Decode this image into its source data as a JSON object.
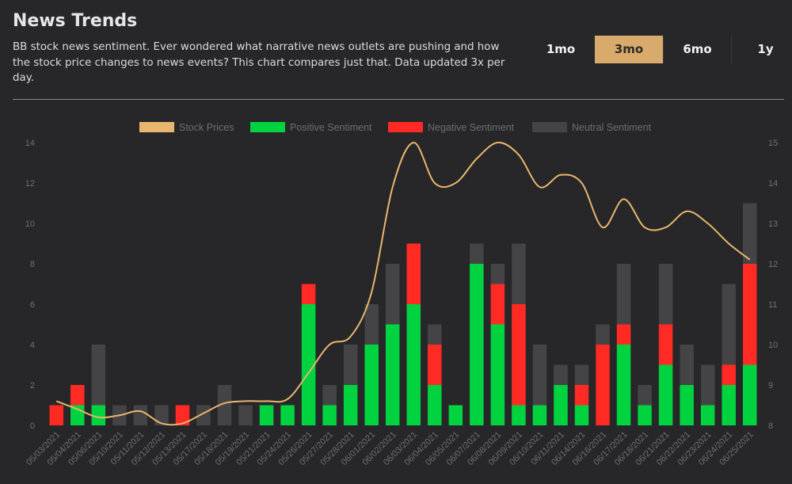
{
  "header": {
    "title": "News Trends",
    "description": "BB stock news sentiment. Ever wondered what narrative news outlets are pushing and how the stock price changes to news events? This chart compares just that. Data updated 3x per day."
  },
  "range_tabs": [
    {
      "label": "1mo",
      "active": false
    },
    {
      "label": "3mo",
      "active": true
    },
    {
      "label": "6mo",
      "active": false
    },
    {
      "label": "1y",
      "active": false
    }
  ],
  "colors": {
    "accent": "#d8aa6b",
    "positive": "#00d33f",
    "negative": "#ff2a24",
    "neutral": "#444446",
    "price_line": "#e8b66e"
  },
  "chart_data": {
    "type": "bar",
    "stacked": true,
    "categories": [
      "05/03/2021",
      "05/04/2021",
      "05/06/2021",
      "05/10/2021",
      "05/11/2021",
      "05/12/2021",
      "05/13/2021",
      "05/17/2021",
      "05/18/2021",
      "05/19/2021",
      "05/21/2021",
      "05/24/2021",
      "05/26/2021",
      "05/27/2021",
      "05/28/2021",
      "06/01/2021",
      "06/02/2021",
      "06/03/2021",
      "06/04/2021",
      "06/05/2021",
      "06/07/2021",
      "06/08/2021",
      "06/09/2021",
      "06/10/2021",
      "06/11/2021",
      "06/14/2021",
      "06/16/2021",
      "06/17/2021",
      "06/18/2021",
      "06/21/2021",
      "06/22/2021",
      "06/23/2021",
      "06/24/2021",
      "06/25/2021"
    ],
    "series": [
      {
        "name": "Positive Sentiment",
        "axis": "left",
        "values": [
          0,
          1,
          1,
          0,
          0,
          0,
          0,
          0,
          0,
          0,
          1,
          1,
          6,
          1,
          2,
          4,
          5,
          6,
          2,
          1,
          8,
          5,
          1,
          1,
          2,
          1,
          0,
          4,
          1,
          3,
          2,
          1,
          2,
          3
        ]
      },
      {
        "name": "Negative Sentiment",
        "axis": "left",
        "values": [
          1,
          1,
          0,
          0,
          0,
          0,
          1,
          0,
          0,
          0,
          0,
          0,
          1,
          0,
          0,
          0,
          0,
          3,
          2,
          0,
          0,
          2,
          5,
          0,
          0,
          1,
          4,
          1,
          0,
          2,
          0,
          0,
          1,
          5
        ]
      },
      {
        "name": "Neutral Sentiment",
        "axis": "left",
        "values": [
          0,
          0,
          3,
          1,
          1,
          1,
          0,
          1,
          2,
          1,
          0,
          0,
          0,
          1,
          2,
          2,
          3,
          0,
          1,
          0,
          1,
          1,
          3,
          3,
          1,
          1,
          1,
          3,
          1,
          3,
          2,
          2,
          4,
          3
        ]
      },
      {
        "name": "Stock Prices",
        "type": "line",
        "axis": "right",
        "values": [
          8.6,
          8.4,
          8.2,
          8.25,
          8.35,
          8.05,
          8.05,
          8.3,
          8.55,
          8.6,
          8.6,
          8.65,
          9.3,
          10.0,
          10.2,
          11.3,
          13.9,
          15.0,
          14.0,
          14.0,
          14.6,
          15.0,
          14.7,
          13.9,
          14.2,
          14.0,
          12.9,
          13.6,
          12.9,
          12.9,
          13.3,
          13.0,
          12.5,
          12.1
        ]
      }
    ],
    "y_left": {
      "min": 0,
      "max": 14,
      "ticks": [
        0,
        2,
        4,
        6,
        8,
        10,
        12,
        14
      ]
    },
    "y_right": {
      "min": 8,
      "max": 15,
      "ticks": [
        8,
        9,
        10,
        11,
        12,
        13,
        14,
        15
      ]
    },
    "legend_position": "top-center",
    "grid": false
  }
}
